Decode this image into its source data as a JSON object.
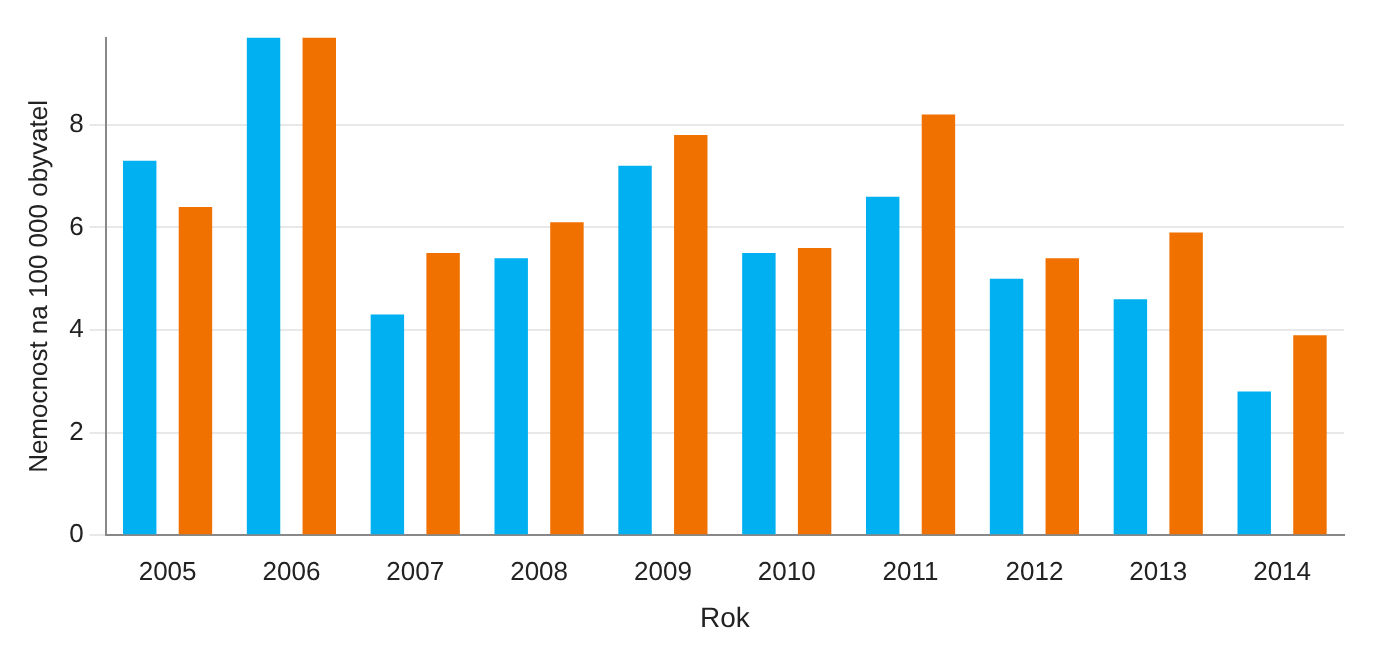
{
  "chart_data": {
    "type": "bar",
    "xlabel": "Rok",
    "ylabel": "Nemocnost na 100 000 obyvatel",
    "categories": [
      "2005",
      "2006",
      "2007",
      "2008",
      "2009",
      "2010",
      "2011",
      "2012",
      "2013",
      "2014"
    ],
    "series": [
      {
        "color": "#00b0f0",
        "values": [
          7.3,
          9.7,
          4.3,
          5.4,
          7.2,
          5.5,
          6.6,
          5.0,
          4.6,
          2.8
        ]
      },
      {
        "color": "#f07000",
        "values": [
          6.4,
          9.7,
          5.5,
          6.1,
          7.8,
          5.6,
          8.2,
          5.4,
          5.9,
          3.9
        ]
      }
    ],
    "ylim": [
      0,
      9.7
    ],
    "yticks": [
      0,
      2,
      4,
      6,
      8
    ],
    "grid": "y",
    "legend": false
  }
}
